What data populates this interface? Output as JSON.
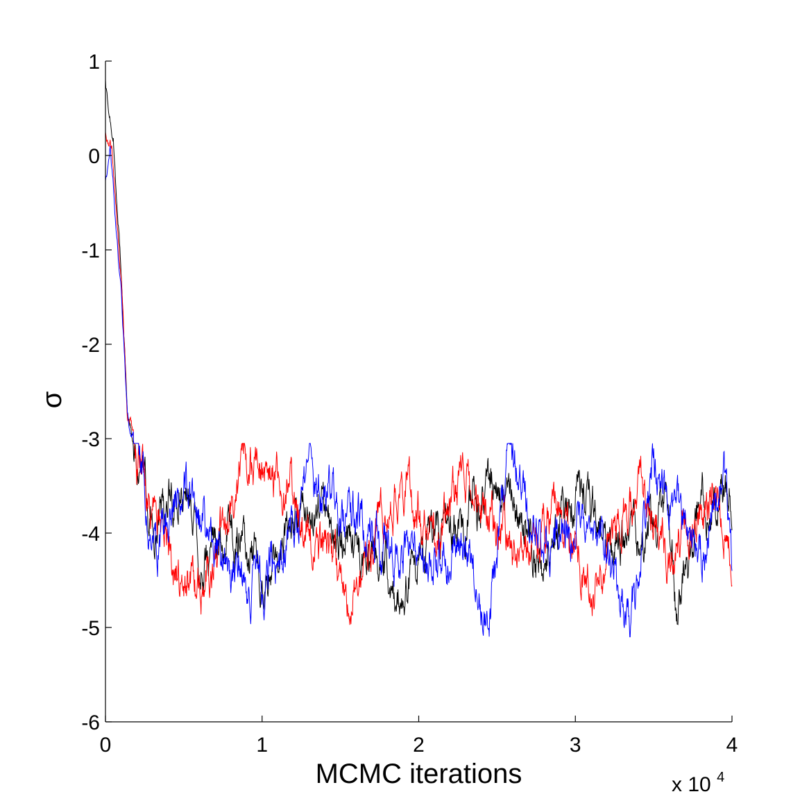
{
  "chart_data": {
    "type": "line",
    "title": "",
    "xlabel": "MCMC iterations",
    "ylabel": "σ",
    "x_multiplier_label": "x 10",
    "x_multiplier_exponent": "4",
    "xlim": [
      0,
      4
    ],
    "ylim": [
      -6,
      1
    ],
    "xticks": [
      0,
      1,
      2,
      3,
      4
    ],
    "yticks": [
      1,
      0,
      -1,
      -2,
      -3,
      -4,
      -5,
      -6
    ],
    "grid": false,
    "legend": "none",
    "series_style": {
      "burn_in_start": [
        0.78,
        0.22,
        -0.3
      ],
      "burn_in_end_x": 0.18,
      "stationary_mean": -3.9,
      "stationary_range": [
        -5.1,
        -3.05
      ],
      "points_per_series": 1600
    },
    "series": [
      {
        "color": "#000000",
        "values_summary": "trace starting near 0.78, settling around -3.9 after ~0.18e4 iterations",
        "keypoints": [
          [
            0,
            0.78
          ],
          [
            0.02,
            0.4
          ],
          [
            0.05,
            0.2
          ],
          [
            0.1,
            -1.2
          ],
          [
            0.14,
            -2.7
          ],
          [
            0.2,
            -3.2
          ],
          [
            0.3,
            -3.9
          ],
          [
            0.5,
            -3.6
          ],
          [
            0.6,
            -4.3
          ],
          [
            0.8,
            -3.9
          ],
          [
            1.0,
            -4.4
          ],
          [
            1.3,
            -3.7
          ],
          [
            1.6,
            -4.2
          ],
          [
            1.9,
            -4.5
          ],
          [
            2.2,
            -3.9
          ],
          [
            2.5,
            -3.5
          ],
          [
            2.8,
            -4.4
          ],
          [
            3.0,
            -3.6
          ],
          [
            3.3,
            -4.1
          ],
          [
            3.6,
            -3.8
          ],
          [
            3.65,
            -4.9
          ],
          [
            3.8,
            -3.6
          ],
          [
            4.0,
            -3.65
          ]
        ]
      },
      {
        "color": "#ff0000",
        "values_summary": "trace starting near 0.22, settling around -3.9 after ~0.18e4 iterations",
        "keypoints": [
          [
            0,
            0.22
          ],
          [
            0.04,
            0.1
          ],
          [
            0.1,
            -1.3
          ],
          [
            0.14,
            -2.7
          ],
          [
            0.2,
            -3.1
          ],
          [
            0.3,
            -3.8
          ],
          [
            0.5,
            -4.6
          ],
          [
            0.6,
            -4.7
          ],
          [
            0.9,
            -3.3
          ],
          [
            1.2,
            -3.6
          ],
          [
            1.55,
            -4.8
          ],
          [
            1.9,
            -3.4
          ],
          [
            2.1,
            -4.1
          ],
          [
            2.3,
            -3.4
          ],
          [
            2.6,
            -4.2
          ],
          [
            2.9,
            -3.8
          ],
          [
            3.1,
            -4.6
          ],
          [
            3.4,
            -3.5
          ],
          [
            3.6,
            -4.2
          ],
          [
            3.9,
            -3.6
          ],
          [
            4.0,
            -4.2
          ]
        ]
      },
      {
        "color": "#0000ff",
        "values_summary": "trace starting near -0.3, settling around -3.9 after ~0.18e4 iterations",
        "keypoints": [
          [
            0,
            -0.3
          ],
          [
            0.03,
            0.05
          ],
          [
            0.1,
            -1.4
          ],
          [
            0.14,
            -2.8
          ],
          [
            0.2,
            -3.0
          ],
          [
            0.3,
            -4.2
          ],
          [
            0.5,
            -3.5
          ],
          [
            0.8,
            -4.3
          ],
          [
            1.0,
            -4.6
          ],
          [
            1.3,
            -3.5
          ],
          [
            1.6,
            -3.8
          ],
          [
            1.9,
            -4.3
          ],
          [
            2.3,
            -4.1
          ],
          [
            2.45,
            -4.9
          ],
          [
            2.58,
            -3.1
          ],
          [
            2.8,
            -4.2
          ],
          [
            3.1,
            -3.8
          ],
          [
            3.35,
            -5.0
          ],
          [
            3.5,
            -3.3
          ],
          [
            3.8,
            -4.2
          ],
          [
            3.95,
            -3.2
          ],
          [
            4.0,
            -4.4
          ]
        ]
      }
    ]
  }
}
